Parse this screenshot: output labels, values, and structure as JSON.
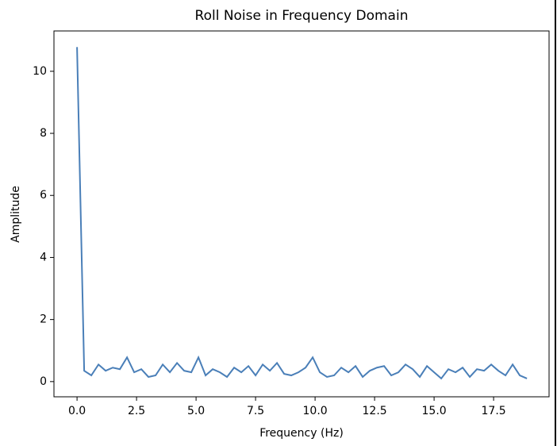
{
  "chart_data": {
    "type": "line",
    "title": "Roll Noise in Frequency Domain",
    "xlabel": "Frequency (Hz)",
    "ylabel": "Amplitude",
    "x": [
      0,
      0.3,
      0.6,
      0.9,
      1.2,
      1.5,
      1.8,
      2.1,
      2.4,
      2.7,
      3,
      3.3,
      3.6,
      3.9,
      4.2,
      4.5,
      4.8,
      5.1,
      5.4,
      5.7,
      6,
      6.3,
      6.6,
      6.9,
      7.2,
      7.5,
      7.8,
      8.1,
      8.4,
      8.7,
      9,
      9.3,
      9.6,
      9.9,
      10.2,
      10.5,
      10.8,
      11.1,
      11.4,
      11.7,
      12,
      12.3,
      12.6,
      12.9,
      13.2,
      13.5,
      13.8,
      14.1,
      14.4,
      14.7,
      15,
      15.3,
      15.6,
      15.9,
      16.2,
      16.5,
      16.8,
      17.1,
      17.4,
      17.7,
      18,
      18.3,
      18.6,
      18.9
    ],
    "values": [
      10.78,
      0.35,
      0.2,
      0.55,
      0.35,
      0.45,
      0.4,
      0.78,
      0.3,
      0.4,
      0.15,
      0.2,
      0.55,
      0.3,
      0.6,
      0.35,
      0.3,
      0.78,
      0.2,
      0.4,
      0.3,
      0.15,
      0.45,
      0.3,
      0.5,
      0.2,
      0.55,
      0.35,
      0.6,
      0.25,
      0.2,
      0.3,
      0.45,
      0.78,
      0.3,
      0.15,
      0.2,
      0.45,
      0.3,
      0.5,
      0.15,
      0.35,
      0.45,
      0.5,
      0.2,
      0.3,
      0.55,
      0.4,
      0.15,
      0.5,
      0.3,
      0.1,
      0.4,
      0.3,
      0.45,
      0.15,
      0.4,
      0.35,
      0.55,
      0.35,
      0.2,
      0.55,
      0.2,
      0.1
    ],
    "color": "#4a7fb8",
    "xlim": [
      -0.97,
      19.83
    ],
    "ylim": [
      -0.49,
      11.3
    ],
    "xticks": [
      {
        "value": 0,
        "label": "0.0"
      },
      2.5,
      {
        "value": 5,
        "label": "5.0"
      },
      7.5,
      {
        "value": 10,
        "label": "10.0"
      },
      12.5,
      {
        "value": 15,
        "label": "15.0"
      },
      17.5
    ],
    "yticks": [
      0,
      2,
      4,
      6,
      8,
      10
    ]
  }
}
